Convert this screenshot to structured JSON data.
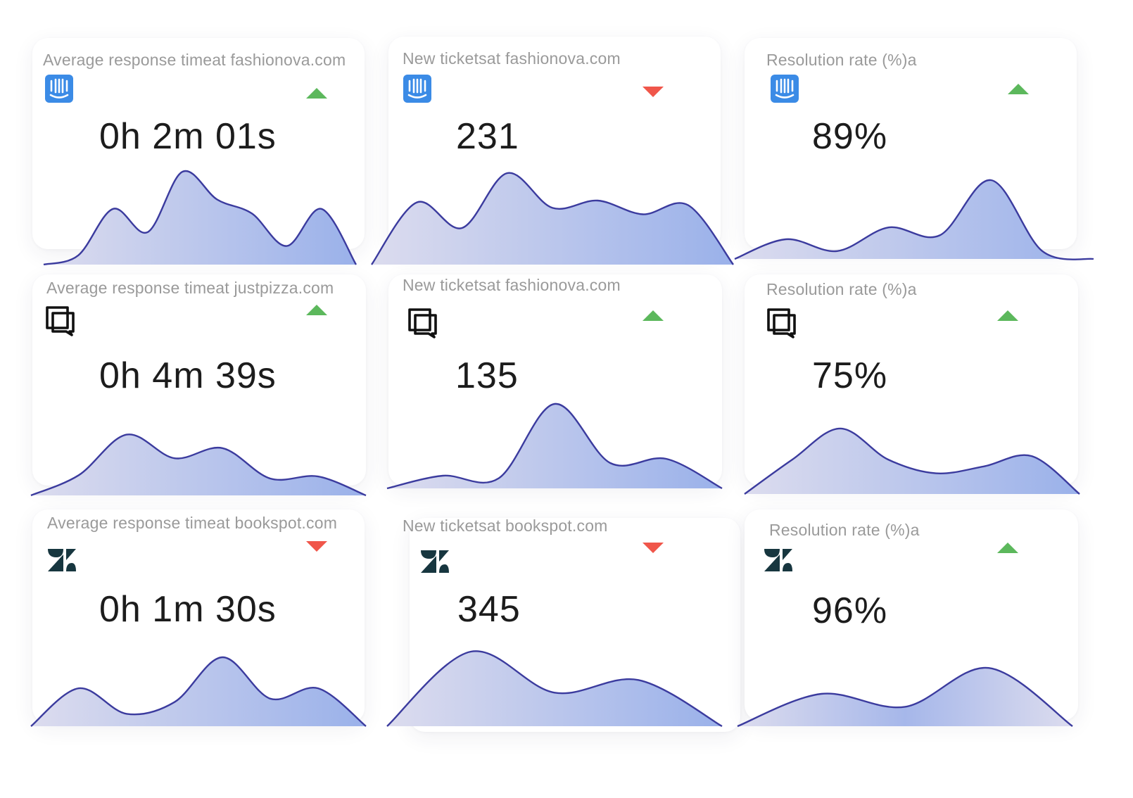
{
  "colors": {
    "line": "#3b3b9e",
    "fill_light": "#d8d9ee",
    "fill_dark": "#9db3ea",
    "trend_up": "#5cb85c",
    "trend_down": "#f0564a",
    "intercom_blue": "#3b8be6",
    "zendesk_dark": "#17363f"
  },
  "cards": [
    {
      "title": "Average response timeat fashionova.com",
      "icon": "intercom-icon",
      "trend": "up",
      "value": "0h 2m 01s",
      "series": [
        0,
        0.1,
        0.6,
        0.35,
        1.0,
        0.7,
        0.55,
        0.2,
        0.6,
        0
      ]
    },
    {
      "title": "New ticketsat fashionova.com",
      "icon": "intercom-icon",
      "trend": "down",
      "value": "231",
      "series": [
        0,
        0.68,
        0.4,
        1.0,
        0.62,
        0.7,
        0.55,
        0.65,
        0
      ]
    },
    {
      "title": "Resolution rate (%)a",
      "icon": "intercom-icon",
      "trend": "up",
      "value": "89%",
      "series": [
        0,
        0.25,
        0.1,
        0.4,
        0.3,
        1.0,
        0.1,
        0
      ]
    },
    {
      "title": "Average response timeat justpizza.com",
      "icon": "chat-copy-icon",
      "trend": "up",
      "value": "0h 4m 39s",
      "series": [
        0,
        0.3,
        0.9,
        0.55,
        0.7,
        0.25,
        0.28,
        0
      ]
    },
    {
      "title": "New ticketsat fashionova.com",
      "icon": "chat-copy-icon",
      "trend": "up",
      "value": "135",
      "series": [
        0,
        0.15,
        0.12,
        1.0,
        0.3,
        0.35,
        0
      ]
    },
    {
      "title": "Resolution rate (%)a",
      "icon": "chat-copy-icon",
      "trend": "up",
      "value": "75%",
      "series": [
        0,
        0.5,
        0.95,
        0.5,
        0.3,
        0.4,
        0.55,
        0
      ]
    },
    {
      "title": "Average response timeat bookspot.com",
      "icon": "zendesk-icon",
      "trend": "down",
      "value": "0h 1m 30s",
      "series": [
        0,
        0.55,
        0.18,
        0.35,
        1.0,
        0.4,
        0.55,
        0
      ]
    },
    {
      "title": "New ticketsat bookspot.com",
      "icon": "zendesk-icon",
      "trend": "down",
      "value": "345",
      "series": [
        0,
        1.0,
        0.45,
        0.62,
        0
      ]
    },
    {
      "title": "Resolution rate (%)a",
      "icon": "zendesk-icon",
      "trend": "up",
      "value": "96%",
      "series": [
        0,
        0.5,
        0.3,
        0.9,
        0
      ]
    }
  ]
}
